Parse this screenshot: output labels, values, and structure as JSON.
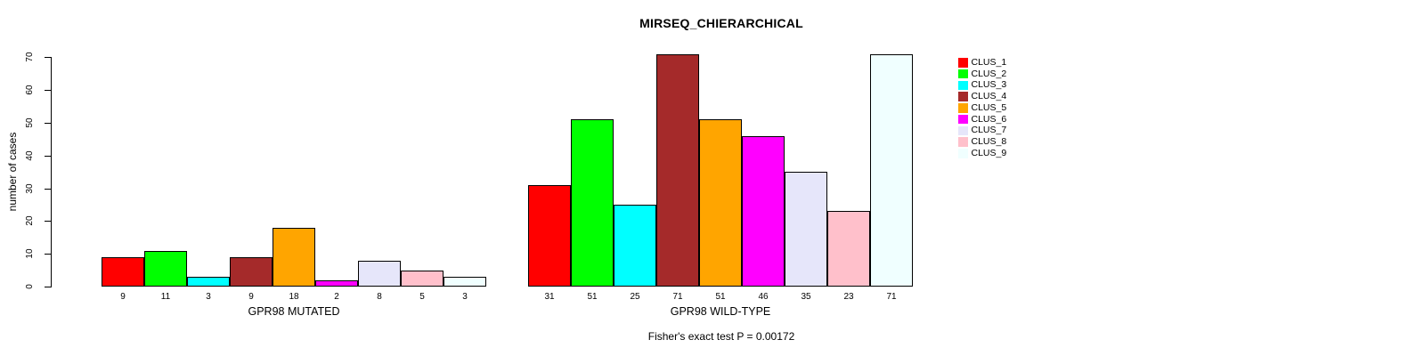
{
  "title": "MIRSEQ_CHIERARCHICAL",
  "chart_data": {
    "type": "bar",
    "title": "MIRSEQ_CHIERARCHICAL",
    "ylabel": "number of cases",
    "xlabel": "",
    "ylim": [
      0,
      70
    ],
    "yticks": [
      0,
      10,
      20,
      30,
      40,
      50,
      60,
      70
    ],
    "grid": false,
    "legend_position": "right",
    "bar_labels_shown": true,
    "groups": [
      {
        "label": "GPR98 MUTATED",
        "values": [
          9,
          11,
          3,
          9,
          18,
          2,
          8,
          5,
          3
        ]
      },
      {
        "label": "GPR98 WILD-TYPE",
        "values": [
          31,
          51,
          25,
          71,
          51,
          46,
          35,
          23,
          71
        ]
      }
    ],
    "series": [
      {
        "name": "CLUS_1",
        "color": "#FF0000",
        "values": [
          9,
          31
        ]
      },
      {
        "name": "CLUS_2",
        "color": "#00FF00",
        "values": [
          11,
          51
        ]
      },
      {
        "name": "CLUS_3",
        "color": "#00FFFF",
        "values": [
          3,
          25
        ]
      },
      {
        "name": "CLUS_4",
        "color": "#A52A2A",
        "values": [
          9,
          71
        ]
      },
      {
        "name": "CLUS_5",
        "color": "#FFA500",
        "values": [
          18,
          51
        ]
      },
      {
        "name": "CLUS_6",
        "color": "#FF00FF",
        "values": [
          2,
          46
        ]
      },
      {
        "name": "CLUS_7",
        "color": "#E6E6FA",
        "values": [
          8,
          35
        ]
      },
      {
        "name": "CLUS_8",
        "color": "#FFC0CB",
        "values": [
          5,
          23
        ]
      },
      {
        "name": "CLUS_9",
        "color": "#F0FFFF",
        "values": [
          3,
          71
        ]
      }
    ],
    "annotation": "Fisher's exact test P = 0.00172"
  }
}
